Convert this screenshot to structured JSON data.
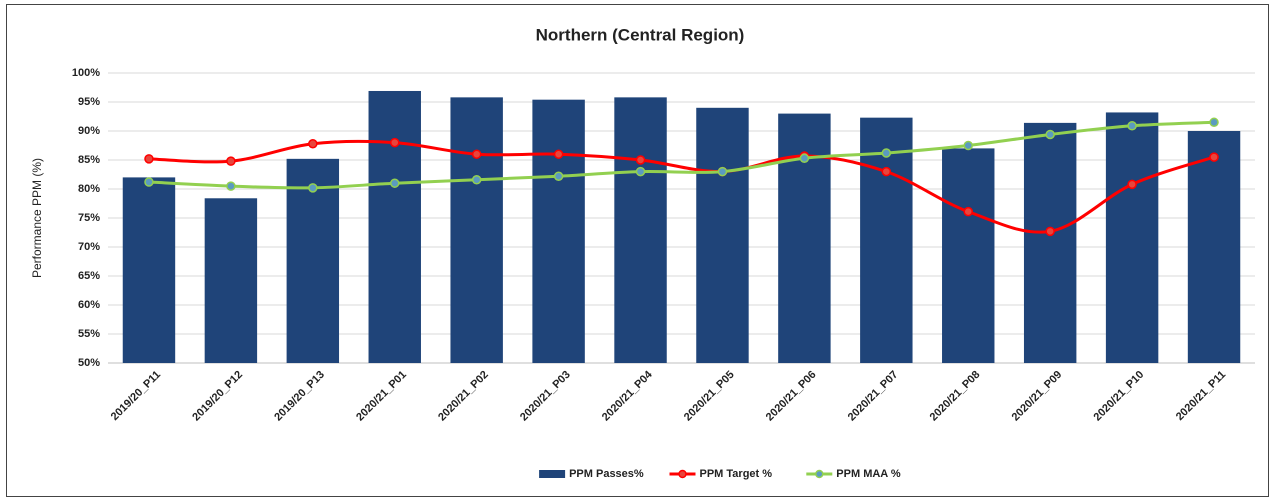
{
  "chart_data": {
    "type": "bar",
    "title": "Northern (Central Region)",
    "y_label": "Performance PPM (%)",
    "categories": [
      "2019/20_P11",
      "2019/20_P12",
      "2019/20_P13",
      "2020/21_P01",
      "2020/21_P02",
      "2020/21_P03",
      "2020/21_P04",
      "2020/21_P05",
      "2020/21_P06",
      "2020/21_P07",
      "2020/21_P08",
      "2020/21_P09",
      "2020/21_P10",
      "2020/21_P11"
    ],
    "series": [
      {
        "name": "PPM Passes%",
        "type": "bar",
        "color": "#1f4479",
        "values": [
          82,
          78.4,
          85.2,
          96.9,
          95.8,
          95.4,
          95.8,
          94,
          93,
          92.3,
          87,
          91.4,
          93.2,
          90
        ]
      },
      {
        "name": "PPM Target %",
        "type": "line",
        "color": "#ff0000",
        "marker_fill": "#e8453c",
        "values": [
          85.2,
          84.8,
          87.8,
          88,
          86,
          86,
          85,
          83,
          85.7,
          83,
          76.1,
          72.7,
          80.8,
          85.5
        ]
      },
      {
        "name": "PPM MAA %",
        "type": "line",
        "color": "#92d050",
        "marker_fill": "#5b9bc0",
        "values": [
          81.2,
          80.5,
          80.2,
          81,
          81.6,
          82.2,
          83,
          83,
          85.3,
          86.2,
          87.5,
          89.4,
          90.9,
          91.5
        ]
      }
    ],
    "ylim": [
      50,
      100
    ],
    "yticks": [
      {
        "value": 50,
        "label": "50%"
      },
      {
        "value": 55,
        "label": "55%"
      },
      {
        "value": 60,
        "label": "60%"
      },
      {
        "value": 65,
        "label": "65%"
      },
      {
        "value": 70,
        "label": "70%"
      },
      {
        "value": 75,
        "label": "75%"
      },
      {
        "value": 80,
        "label": "80%"
      },
      {
        "value": 85,
        "label": "85%"
      },
      {
        "value": 90,
        "label": "90%"
      },
      {
        "value": 95,
        "label": "95%"
      },
      {
        "value": 100,
        "label": "100%"
      }
    ],
    "grid": true,
    "legend": "bottom"
  }
}
